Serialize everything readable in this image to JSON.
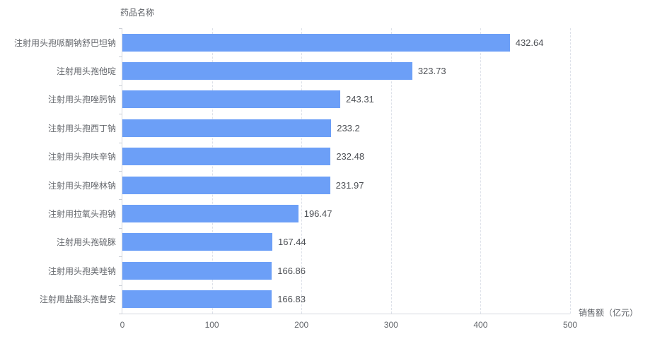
{
  "chart_data": {
    "type": "bar",
    "orientation": "horizontal",
    "title": "药品名称",
    "xlabel": "销售额（亿元）",
    "categories": [
      "注射用头孢哌酮钠舒巴坦钠",
      "注射用头孢他啶",
      "注射用头孢唑肟钠",
      "注射用头孢西丁钠",
      "注射用头孢呋辛钠",
      "注射用头孢唑林钠",
      "注射用拉氧头孢钠",
      "注射用头孢硫脒",
      "注射用头孢美唑钠",
      "注射用盐酸头孢替安"
    ],
    "values": [
      432.64,
      323.73,
      243.31,
      233.2,
      232.48,
      231.97,
      196.47,
      167.44,
      166.86,
      166.83
    ],
    "xlim": [
      0,
      500
    ],
    "xticks": [
      0,
      100,
      200,
      300,
      400,
      500
    ],
    "grid": "vertical-dashed",
    "legend": "none",
    "bar_color": "#6C9FF7"
  }
}
